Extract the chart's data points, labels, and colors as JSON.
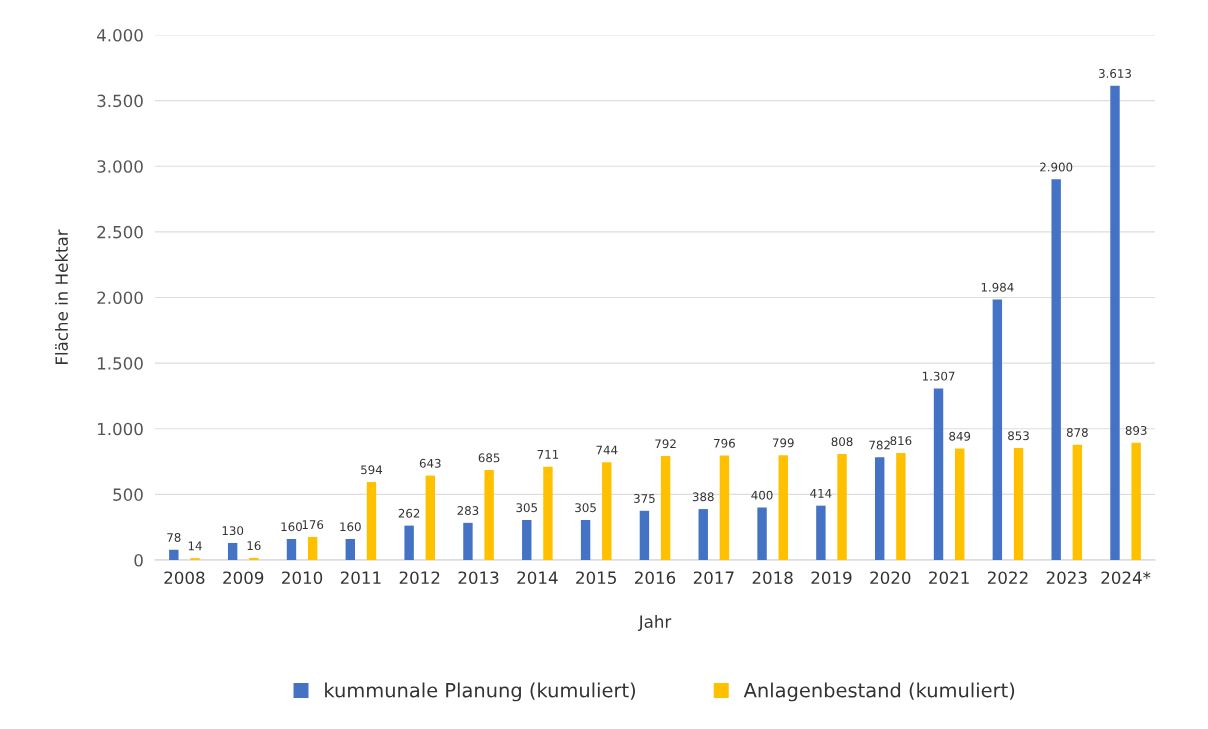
{
  "chart_data": {
    "type": "bar",
    "xlabel": "Jahr",
    "ylabel": "Fläche in Hektar",
    "categories": [
      "2008",
      "2009",
      "2010",
      "2011",
      "2012",
      "2013",
      "2014",
      "2015",
      "2016",
      "2017",
      "2018",
      "2019",
      "2020",
      "2021",
      "2022",
      "2023",
      "2024*"
    ],
    "series": [
      {
        "name": "kummunale Planung (kumuliert)",
        "color": "#4472c4",
        "values": [
          78,
          130,
          160,
          160,
          262,
          283,
          305,
          305,
          375,
          388,
          400,
          414,
          782,
          1307,
          1984,
          2900,
          3613
        ],
        "value_labels": [
          "78",
          "130",
          "160",
          "160",
          "262",
          "283",
          "305",
          "305",
          "375",
          "388",
          "400",
          "414",
          "782",
          "1.307",
          "1.984",
          "2.900",
          "3.613"
        ]
      },
      {
        "name": "Anlagenbestand (kumuliert)",
        "color": "#ffc000",
        "values": [
          14,
          16,
          176,
          594,
          643,
          685,
          711,
          744,
          792,
          796,
          799,
          808,
          816,
          849,
          853,
          878,
          893
        ],
        "value_labels": [
          "14",
          "16",
          "176",
          "594",
          "643",
          "685",
          "711",
          "744",
          "792",
          "796",
          "799",
          "808",
          "816",
          "849",
          "853",
          "878",
          "893"
        ]
      }
    ],
    "ylim": [
      0,
      4000
    ],
    "yticks": [
      0,
      500,
      {
        "value": 1000,
        "label": "1.000"
      },
      {
        "value": 1500,
        "label": "1.500"
      },
      {
        "value": 2000,
        "label": "2.000"
      },
      {
        "value": 2500,
        "label": "2.500"
      },
      {
        "value": 3000,
        "label": "3.000"
      },
      {
        "value": 3500,
        "label": "3.500"
      },
      {
        "value": 4000,
        "label": "4.000"
      }
    ],
    "grid": "y",
    "legend": "bottom"
  }
}
